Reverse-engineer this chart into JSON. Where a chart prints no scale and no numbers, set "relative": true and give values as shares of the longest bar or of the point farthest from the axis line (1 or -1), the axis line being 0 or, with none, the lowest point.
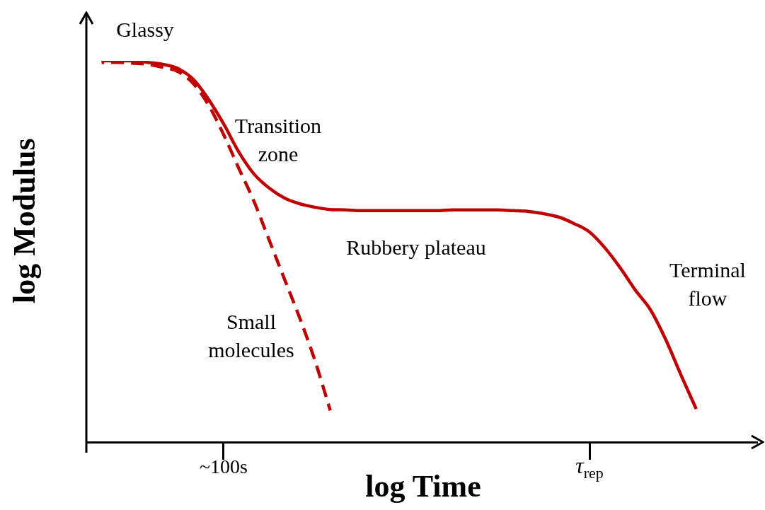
{
  "chart_data": {
    "type": "line",
    "relative": true,
    "xlabel": "log Time",
    "ylabel": "log Modulus",
    "categories": [
      null,
      null,
      null,
      null,
      null,
      null,
      null,
      null,
      null,
      "~100s",
      null,
      null,
      null,
      null,
      null,
      null,
      null,
      null,
      null,
      null,
      null,
      null,
      null,
      null,
      null,
      null,
      null,
      null,
      null,
      null,
      null,
      null,
      null,
      "τ$_{rep}$",
      null,
      null,
      null,
      null,
      null,
      null,
      null,
      null,
      null,
      null,
      null
    ],
    "series": [
      {
        "color": "#c00000",
        "line_style": "solid",
        "values": [
          null,
          1.0,
          1.0,
          1.0,
          0.996,
          0.991,
          0.98,
          0.952,
          0.9,
          0.835,
          0.761,
          0.703,
          0.666,
          0.64,
          0.625,
          0.616,
          0.61,
          0.609,
          0.607,
          0.607,
          0.607,
          0.607,
          0.607,
          0.607,
          0.609,
          0.609,
          0.609,
          0.609,
          0.607,
          0.605,
          0.599,
          0.59,
          0.573,
          0.551,
          0.51,
          0.458,
          0.399,
          0.347,
          0.269,
          0.176,
          0.087,
          null,
          null,
          null,
          null
        ]
      },
      {
        "color": "#c00000",
        "line_style": "dashed",
        "values": [
          null,
          0.996,
          0.996,
          0.994,
          0.991,
          0.983,
          0.972,
          0.941,
          0.885,
          0.807,
          0.718,
          0.631,
          0.529,
          0.427,
          0.325,
          0.213,
          0.083,
          null,
          null,
          null,
          null,
          null,
          null,
          null,
          null,
          null,
          null,
          null,
          null,
          null,
          null,
          null,
          null,
          null,
          null,
          null,
          null,
          null,
          null,
          null,
          null,
          null,
          null,
          null,
          null
        ]
      }
    ],
    "annotations": [
      "Glassy",
      "Transition\nzone",
      "Rubbery plateau",
      "Small\nmolecules",
      "Terminal\nflow"
    ],
    "marker": "none",
    "grid": false,
    "legend": false
  }
}
